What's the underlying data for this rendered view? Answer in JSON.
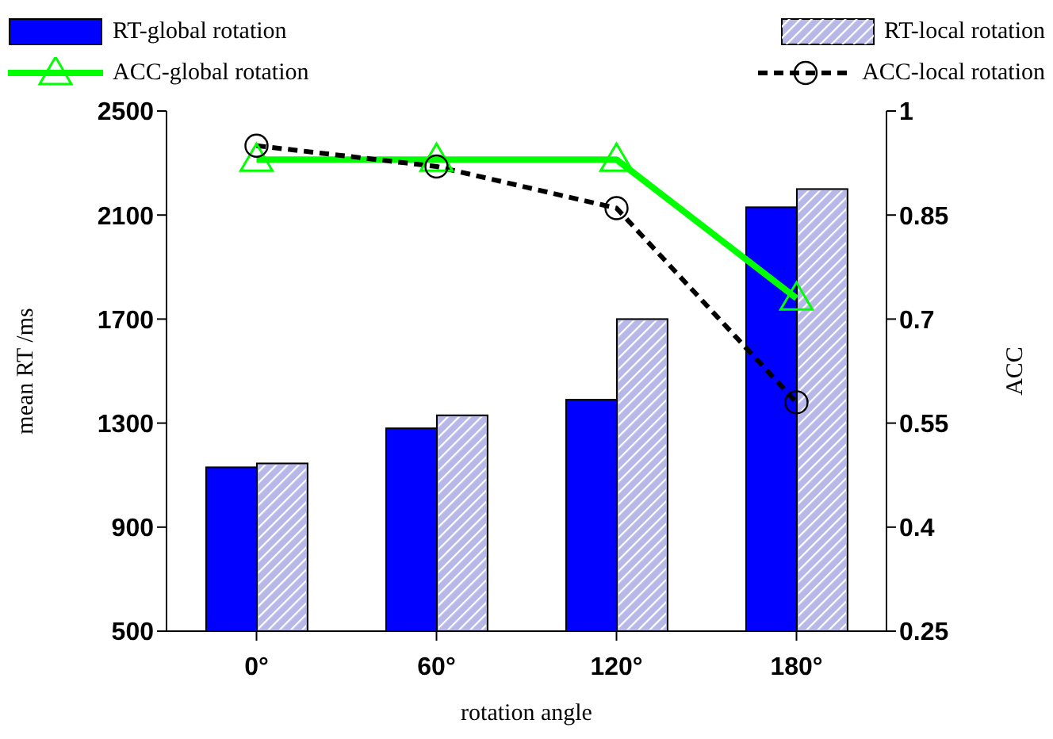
{
  "chart_data": {
    "type": "bar",
    "xlabel": "rotation angle",
    "ylabel": "mean RT /ms",
    "y2label": "ACC",
    "categories": [
      "0°",
      "60°",
      "120°",
      "180°"
    ],
    "series": [
      {
        "name": "RT-global rotation",
        "color": "#0000ff",
        "values": [
          1130,
          1280,
          1390,
          2130
        ]
      },
      {
        "name": "RT-local rotation",
        "color": "#b8b8e8",
        "values": [
          1145,
          1330,
          1700,
          2200
        ]
      },
      {
        "name": "ACC-global rotation",
        "type": "line",
        "axis": "y2",
        "color": "#00ff00",
        "marker": "triangle",
        "line_style": "solid",
        "values": [
          0.93,
          0.93,
          0.93,
          0.73
        ]
      },
      {
        "name": "ACC-local rotation",
        "type": "line",
        "axis": "y2",
        "color": "#000000",
        "marker": "circle",
        "line_style": "dashed",
        "values": [
          0.95,
          0.92,
          0.86,
          0.58
        ]
      }
    ],
    "ylim": [
      500,
      2500
    ],
    "yticks": [
      500,
      900,
      1300,
      1700,
      2100,
      2500
    ],
    "y2lim": [
      0.25,
      1
    ],
    "y2ticks": [
      0.25,
      0.4,
      0.55,
      0.7,
      0.85,
      1
    ],
    "legend": "top",
    "grid": false
  }
}
